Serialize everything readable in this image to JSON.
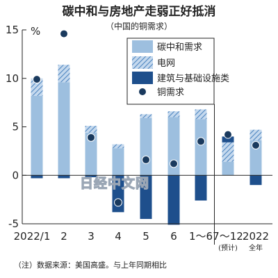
{
  "title": "碳中和与房地产走弱正好抵消",
  "subtitle": "（中国的铜需求）",
  "note": "（注）数据来源：美国高盛。与上年同期相比",
  "watermark": "日经中文网",
  "colors": {
    "carbon": "#9dbfdf",
    "grid_hatch_fg": "#4f86c0",
    "grid_hatch_bg": "#c5d9ee",
    "construction": "#1e4f8c",
    "dot": "#1a3a5e",
    "dot_stroke": "#ffffff"
  },
  "chart_data": {
    "type": "bar",
    "stacked": true,
    "unit": "%",
    "ylim": [
      -5,
      15
    ],
    "yticks": [
      -5,
      0,
      5,
      10,
      15
    ],
    "grid": false,
    "legend_position": "top-right",
    "categories": [
      {
        "label": "2022/1",
        "sub": ""
      },
      {
        "label": "2",
        "sub": ""
      },
      {
        "label": "3",
        "sub": ""
      },
      {
        "label": "4",
        "sub": ""
      },
      {
        "label": "5",
        "sub": ""
      },
      {
        "label": "6",
        "sub": ""
      },
      {
        "label": "1～6",
        "sub": ""
      },
      {
        "label": "7～12",
        "sub": "(预计)"
      },
      {
        "label": "2022",
        "sub": "全年"
      }
    ],
    "series": [
      {
        "key": "carbon",
        "name": "碳中和需求",
        "values": [
          8.2,
          9.6,
          4.4,
          2.8,
          5.9,
          6.0,
          5.8,
          1.4,
          3.6
        ]
      },
      {
        "key": "grid",
        "name": "电网",
        "values": [
          1.8,
          1.8,
          0.7,
          0.4,
          0.4,
          0.6,
          1.0,
          2.0,
          1.1
        ]
      },
      {
        "key": "construction",
        "name": "建筑与基础设施类",
        "values": [
          -0.3,
          -0.3,
          -0.2,
          -3.8,
          -4.5,
          -5.1,
          -2.6,
          0.6,
          -1.0
        ]
      }
    ],
    "dot_series": {
      "key": "copper",
      "name": "铜需求",
      "values": [
        9.9,
        14.6,
        3.9,
        -2.8,
        1.6,
        1.2,
        3.5,
        4.2,
        3.1
      ]
    },
    "separator_after_index": 6
  }
}
